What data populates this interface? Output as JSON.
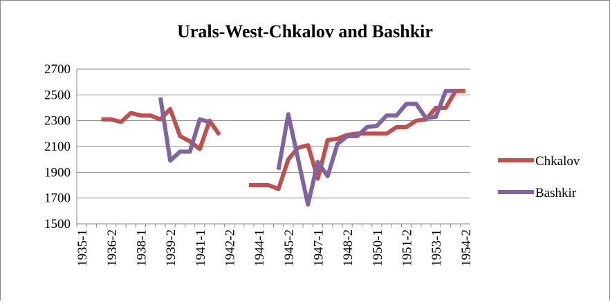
{
  "chart_data": {
    "type": "line",
    "title": "Urals-West-Chkalov and Bashkir",
    "categories": [
      "1935-1",
      null,
      null,
      "1936-2",
      null,
      null,
      "1938-1",
      null,
      null,
      "1939-2",
      null,
      null,
      "1941-1",
      null,
      null,
      "1942-2",
      null,
      null,
      "1944-1",
      null,
      null,
      "1945-2",
      null,
      null,
      "1947-1",
      null,
      null,
      "1948-2",
      null,
      null,
      "1950-1",
      null,
      null,
      "1951-2",
      null,
      null,
      "1953-1",
      null,
      null,
      "1954-2"
    ],
    "series": [
      {
        "name": "Chkalov",
        "color": "#c0504d",
        "values": [
          null,
          null,
          2310,
          2310,
          2290,
          2360,
          2340,
          2340,
          2310,
          2390,
          2180,
          2140,
          2080,
          2300,
          2190,
          null,
          null,
          1800,
          1800,
          1800,
          1770,
          2000,
          2090,
          2110,
          1850,
          2150,
          2160,
          2190,
          2200,
          2200,
          2200,
          2200,
          2250,
          2250,
          2300,
          2310,
          2400,
          2400,
          2530,
          2530
        ]
      },
      {
        "name": "Bashkir",
        "color": "#8064a2",
        "values": [
          null,
          null,
          null,
          null,
          null,
          null,
          null,
          null,
          2480,
          1990,
          2060,
          2060,
          2310,
          2290,
          null,
          null,
          null,
          null,
          null,
          null,
          1920,
          2350,
          2000,
          1650,
          1980,
          1870,
          2120,
          2180,
          2180,
          2250,
          2260,
          2340,
          2340,
          2430,
          2430,
          2320,
          2330,
          2530,
          2530,
          null
        ]
      }
    ],
    "ylim": [
      1500,
      2700
    ],
    "yticks": [
      1500,
      1700,
      1900,
      2100,
      2300,
      2500,
      2700
    ],
    "grid": true,
    "legend": "right"
  }
}
